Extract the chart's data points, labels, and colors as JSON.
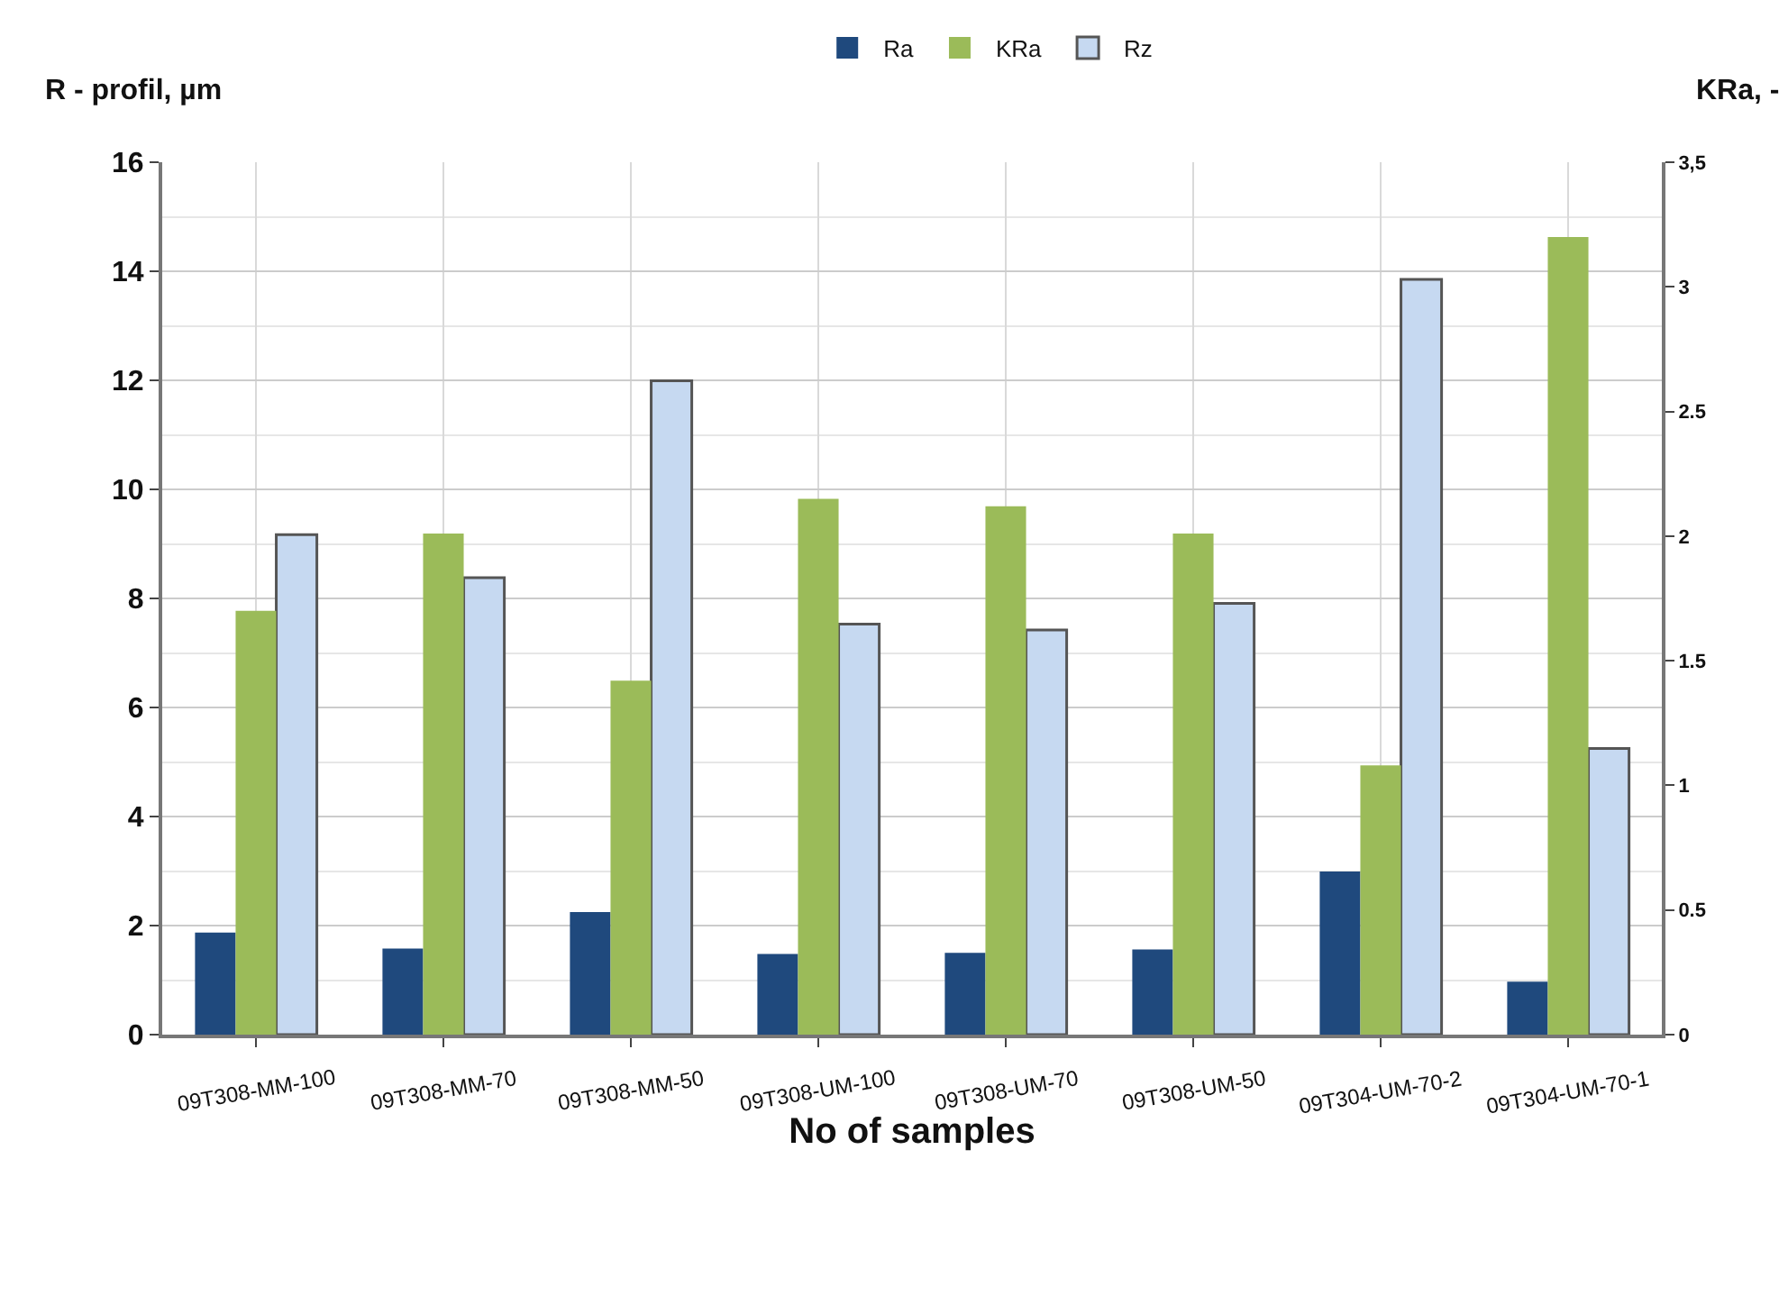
{
  "chart_data": {
    "type": "bar",
    "xlabel": "No of samples",
    "ylabel": "R - profil, µm",
    "y2label": "KRa, -",
    "categories": [
      "09T308-MM-100",
      "09T308-MM-70",
      "09T308-MM-50",
      "09T308-UM-100",
      "09T308-UM-70",
      "09T308-UM-50",
      "09T304-UM-70-2",
      "09T304-UM-70-1"
    ],
    "series": [
      {
        "name": "Ra",
        "color": "#1f497d",
        "values": [
          1.87,
          1.58,
          2.25,
          1.48,
          1.5,
          1.56,
          2.99,
          0.97
        ]
      },
      {
        "name": "KRa",
        "color": "#9bbb59",
        "axis": "y2",
        "values": [
          1.7,
          2.01,
          1.42,
          2.15,
          2.12,
          2.01,
          1.08,
          3.2
        ]
      },
      {
        "name": "Rz",
        "color": "#c6d9f1",
        "values": [
          9.17,
          8.38,
          11.99,
          7.53,
          7.42,
          7.91,
          13.85,
          5.25
        ]
      }
    ],
    "ylim": [
      0,
      16
    ],
    "yticks": [
      0,
      2,
      4,
      6,
      8,
      10,
      12,
      14,
      16
    ],
    "y2lim": [
      0,
      3.5
    ],
    "y2ticks": [
      0,
      0.5,
      1,
      1.5,
      2,
      2.5,
      3,
      {
        "value": 3.5,
        "label": "3,5"
      }
    ],
    "grid": true,
    "legend": "top"
  }
}
